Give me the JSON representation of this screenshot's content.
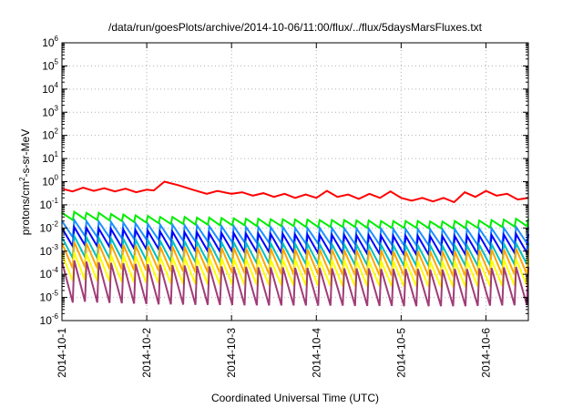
{
  "chart_data": {
    "type": "line",
    "title": "/data/run/goesPlots/archive/2014-10-06/11:00/flux/../flux/5daysMarsFluxes.txt",
    "xlabel": "Coordinated Universal Time (UTC)",
    "ylabel": {
      "base": "protons/cm",
      "sup": "2",
      "rest": "-s-sr-MeV"
    },
    "x_scale": "time",
    "y_scale": "log",
    "xlim": [
      "2014-10-01",
      "2014-10-06 12:00"
    ],
    "ylim": [
      1e-06,
      1000000.0
    ],
    "grid": true,
    "legend": "none",
    "x_ticks": [
      "2014-10-1",
      "2014-10-2",
      "2014-10-3",
      "2014-10-4",
      "2014-10-5",
      "2014-10-6"
    ],
    "y_ticks": [
      {
        "base": "10",
        "exp": "6"
      },
      {
        "base": "10",
        "exp": "5"
      },
      {
        "base": "10",
        "exp": "4"
      },
      {
        "base": "10",
        "exp": "3"
      },
      {
        "base": "10",
        "exp": "2"
      },
      {
        "base": "10",
        "exp": "1"
      },
      {
        "base": "10",
        "exp": "0"
      },
      {
        "base": "10",
        "exp": "-1"
      },
      {
        "base": "10",
        "exp": "-2"
      },
      {
        "base": "10",
        "exp": "-3"
      },
      {
        "base": "10",
        "exp": "-4"
      },
      {
        "base": "10",
        "exp": "-5"
      },
      {
        "base": "10",
        "exp": "-6"
      }
    ],
    "series": [
      {
        "color": "#ff0000",
        "width": 2,
        "points": [
          [
            "2014-10-01 00:00",
            0.5
          ],
          [
            "2014-10-01 03:00",
            0.38
          ],
          [
            "2014-10-01 06:00",
            0.55
          ],
          [
            "2014-10-01 09:00",
            0.4
          ],
          [
            "2014-10-01 12:00",
            0.52
          ],
          [
            "2014-10-01 15:00",
            0.38
          ],
          [
            "2014-10-01 18:00",
            0.5
          ],
          [
            "2014-10-01 21:00",
            0.35
          ],
          [
            "2014-10-02 00:00",
            0.45
          ],
          [
            "2014-10-02 02:00",
            0.42
          ],
          [
            "2014-10-02 05:00",
            1.0
          ],
          [
            "2014-10-02 09:00",
            0.7
          ],
          [
            "2014-10-02 13:00",
            0.45
          ],
          [
            "2014-10-02 17:00",
            0.3
          ],
          [
            "2014-10-02 20:00",
            0.4
          ],
          [
            "2014-10-03 00:00",
            0.3
          ],
          [
            "2014-10-03 03:00",
            0.35
          ],
          [
            "2014-10-03 06:00",
            0.25
          ],
          [
            "2014-10-03 09:00",
            0.32
          ],
          [
            "2014-10-03 12:00",
            0.22
          ],
          [
            "2014-10-03 15:00",
            0.3
          ],
          [
            "2014-10-03 18:00",
            0.2
          ],
          [
            "2014-10-03 21:00",
            0.28
          ],
          [
            "2014-10-04 00:00",
            0.2
          ],
          [
            "2014-10-04 03:00",
            0.4
          ],
          [
            "2014-10-04 06:00",
            0.22
          ],
          [
            "2014-10-04 09:00",
            0.28
          ],
          [
            "2014-10-04 12:00",
            0.18
          ],
          [
            "2014-10-04 15:00",
            0.3
          ],
          [
            "2014-10-04 18:00",
            0.2
          ],
          [
            "2014-10-04 21:00",
            0.38
          ],
          [
            "2014-10-05 00:00",
            0.2
          ],
          [
            "2014-10-05 03:00",
            0.15
          ],
          [
            "2014-10-05 06:00",
            0.2
          ],
          [
            "2014-10-05 09:00",
            0.14
          ],
          [
            "2014-10-05 12:00",
            0.2
          ],
          [
            "2014-10-05 15:00",
            0.13
          ],
          [
            "2014-10-05 18:00",
            0.35
          ],
          [
            "2014-10-05 21:00",
            0.22
          ],
          [
            "2014-10-06 00:00",
            0.4
          ],
          [
            "2014-10-06 03:00",
            0.25
          ],
          [
            "2014-10-06 06:00",
            0.3
          ],
          [
            "2014-10-06 09:00",
            0.17
          ],
          [
            "2014-10-06 12:00",
            0.2
          ]
        ]
      },
      {
        "color": "#00ee00",
        "width": 2,
        "sawtooth": true,
        "peaks": [
          0.045,
          0.05,
          0.045,
          0.045,
          0.04,
          0.038,
          0.035,
          0.033,
          0.03,
          0.03,
          0.03,
          0.028,
          0.028,
          0.027,
          0.026,
          0.025,
          0.025,
          0.024,
          0.024,
          0.023,
          0.023,
          0.022,
          0.022,
          0.022,
          0.021,
          0.021,
          0.02,
          0.02,
          0.02,
          0.02,
          0.019,
          0.019,
          0.02,
          0.02,
          0.021,
          0.022,
          0.023,
          0.025
        ],
        "troughs": [
          0.022,
          0.024,
          0.022,
          0.021,
          0.02,
          0.018,
          0.017,
          0.016,
          0.015,
          0.015,
          0.014,
          0.014,
          0.013,
          0.013,
          0.013,
          0.012,
          0.012,
          0.012,
          0.012,
          0.011,
          0.011,
          0.011,
          0.011,
          0.011,
          0.01,
          0.01,
          0.01,
          0.01,
          0.01,
          0.0098,
          0.0098,
          0.0095,
          0.0098,
          0.01,
          0.0105,
          0.011,
          0.0115,
          0.012
        ]
      },
      {
        "color": "#1e90ff",
        "width": 2,
        "sawtooth": true,
        "peaks": [
          0.02,
          0.022,
          0.02,
          0.019,
          0.018,
          0.017,
          0.016,
          0.015,
          0.014,
          0.014,
          0.013,
          0.013,
          0.012,
          0.012,
          0.012,
          0.011,
          0.011,
          0.011,
          0.011,
          0.01,
          0.01,
          0.01,
          0.01,
          0.0098,
          0.0095,
          0.0095,
          0.0093,
          0.009,
          0.009,
          0.009,
          0.0088,
          0.0088,
          0.009,
          0.0092,
          0.0095,
          0.0098,
          0.01,
          0.011
        ],
        "troughs": [
          0.004,
          0.0045,
          0.004,
          0.0038,
          0.0036,
          0.0034,
          0.0032,
          0.003,
          0.0028,
          0.0028,
          0.0026,
          0.0026,
          0.0025,
          0.0024,
          0.0024,
          0.0023,
          0.0023,
          0.0022,
          0.0022,
          0.0021,
          0.0021,
          0.002,
          0.002,
          0.002,
          0.0019,
          0.0019,
          0.0019,
          0.0018,
          0.0018,
          0.0018,
          0.0018,
          0.0017,
          0.0018,
          0.0018,
          0.0019,
          0.002,
          0.0021,
          0.0022
        ]
      },
      {
        "color": "#0000ff",
        "width": 2,
        "sawtooth": true,
        "peaks": [
          0.01,
          0.011,
          0.01,
          0.0095,
          0.009,
          0.0085,
          0.008,
          0.0075,
          0.007,
          0.007,
          0.0065,
          0.0065,
          0.006,
          0.006,
          0.006,
          0.0056,
          0.0056,
          0.0055,
          0.0055,
          0.0052,
          0.0052,
          0.005,
          0.005,
          0.005,
          0.0048,
          0.0048,
          0.0046,
          0.0045,
          0.0045,
          0.0045,
          0.0044,
          0.0044,
          0.0045,
          0.0046,
          0.0048,
          0.005,
          0.0052,
          0.0055
        ],
        "troughs": [
          0.0016,
          0.0018,
          0.0016,
          0.0015,
          0.0014,
          0.0013,
          0.0012,
          0.0012,
          0.0011,
          0.0011,
          0.001,
          0.001,
          0.00095,
          0.00095,
          0.0009,
          0.0009,
          0.0009,
          0.00085,
          0.00085,
          0.0008,
          0.0008,
          0.0008,
          0.0008,
          0.00078,
          0.00075,
          0.00075,
          0.00072,
          0.0007,
          0.0007,
          0.0007,
          0.00068,
          0.00068,
          0.0007,
          0.00072,
          0.00075,
          0.0008,
          0.00082,
          0.00085
        ]
      },
      {
        "color": "#00c0c0",
        "width": 2,
        "sawtooth": true,
        "peaks": [
          0.004,
          0.0045,
          0.004,
          0.0038,
          0.0036,
          0.0034,
          0.0032,
          0.003,
          0.0028,
          0.0028,
          0.0026,
          0.0026,
          0.0025,
          0.0024,
          0.0024,
          0.0023,
          0.0023,
          0.0022,
          0.0022,
          0.0021,
          0.0021,
          0.002,
          0.002,
          0.002,
          0.0019,
          0.0019,
          0.0019,
          0.0018,
          0.0018,
          0.0018,
          0.0018,
          0.0017,
          0.0018,
          0.0018,
          0.0019,
          0.002,
          0.0021,
          0.0022
        ],
        "troughs": [
          0.0005,
          0.00055,
          0.0005,
          0.00048,
          0.00045,
          0.00042,
          0.0004,
          0.00038,
          0.00036,
          0.00035,
          0.00033,
          0.00033,
          0.00032,
          0.0003,
          0.0003,
          0.00029,
          0.00029,
          0.00028,
          0.00028,
          0.00027,
          0.00027,
          0.00026,
          0.00026,
          0.00025,
          0.00024,
          0.00024,
          0.00024,
          0.00023,
          0.00023,
          0.00023,
          0.00022,
          0.00022,
          0.00023,
          0.00023,
          0.00024,
          0.00025,
          0.00026,
          0.00027
        ]
      },
      {
        "color": "#ffa500",
        "width": 2,
        "sawtooth": true,
        "peaks": [
          0.0022,
          0.0025,
          0.0022,
          0.0021,
          0.002,
          0.0019,
          0.0018,
          0.0017,
          0.0016,
          0.0016,
          0.0015,
          0.0015,
          0.0014,
          0.0014,
          0.0014,
          0.0013,
          0.0013,
          0.0013,
          0.0013,
          0.0012,
          0.0012,
          0.0012,
          0.0012,
          0.0011,
          0.0011,
          0.0011,
          0.0011,
          0.001,
          0.001,
          0.001,
          0.001,
          0.001,
          0.001,
          0.0011,
          0.0011,
          0.0012,
          0.0012,
          0.0013
        ],
        "troughs": [
          0.00018,
          0.0002,
          0.00018,
          0.00017,
          0.00016,
          0.00015,
          0.00014,
          0.00014,
          0.00013,
          0.00013,
          0.00012,
          0.00012,
          0.00011,
          0.00011,
          0.00011,
          0.0001,
          0.0001,
          0.0001,
          0.0001,
          9.5e-05,
          9.5e-05,
          9e-05,
          9e-05,
          9e-05,
          8.8e-05,
          8.8e-05,
          8.5e-05,
          8.5e-05,
          8.5e-05,
          8.2e-05,
          8.2e-05,
          8e-05,
          8.2e-05,
          8.5e-05,
          8.8e-05,
          9e-05,
          9.5e-05,
          0.0001
        ]
      },
      {
        "color": "#ffff00",
        "width": 2,
        "sawtooth": true,
        "peaks": [
          0.0008,
          0.0009,
          0.0008,
          0.00075,
          0.0007,
          0.00068,
          0.00065,
          0.0006,
          0.00058,
          0.00056,
          0.00054,
          0.00052,
          0.0005,
          0.0005,
          0.00048,
          0.00047,
          0.00046,
          0.00045,
          0.00045,
          0.00044,
          0.00043,
          0.00042,
          0.00042,
          0.00041,
          0.0004,
          0.0004,
          0.00039,
          0.00038,
          0.00038,
          0.00038,
          0.00037,
          0.00037,
          0.00038,
          0.00039,
          0.0004,
          0.00042,
          0.00044,
          0.00046
        ],
        "troughs": [
          5e-05,
          5.5e-05,
          5e-05,
          4.8e-05,
          4.6e-05,
          4.4e-05,
          4.2e-05,
          4e-05,
          3.9e-05,
          3.8e-05,
          3.7e-05,
          3.6e-05,
          3.5e-05,
          3.5e-05,
          3.4e-05,
          3.4e-05,
          3.3e-05,
          3.3e-05,
          3.2e-05,
          3.2e-05,
          3.1e-05,
          3.1e-05,
          3e-05,
          3e-05,
          3e-05,
          3e-05,
          2.9e-05,
          2.9e-05,
          2.9e-05,
          2.8e-05,
          2.8e-05,
          2.8e-05,
          2.8e-05,
          2.9e-05,
          3e-05,
          3.1e-05,
          3.2e-05,
          3.3e-05
        ]
      },
      {
        "color": "#a03c78",
        "width": 2,
        "sawtooth": true,
        "peaks": [
          0.00035,
          0.0004,
          0.00035,
          0.00033,
          0.00031,
          0.0003,
          0.00028,
          0.00027,
          0.00026,
          0.00025,
          0.00024,
          0.00023,
          0.00022,
          0.00022,
          0.00021,
          0.00021,
          0.0002,
          0.0002,
          0.0002,
          0.00019,
          0.00019,
          0.00019,
          0.00018,
          0.00018,
          0.00018,
          0.00018,
          0.00017,
          0.00017,
          0.00017,
          0.00017,
          0.00016,
          0.00016,
          0.00017,
          0.00017,
          0.00018,
          0.00019,
          0.0002,
          0.00021
        ],
        "troughs": [
          6e-06,
          6.5e-06,
          6e-06,
          5.8e-06,
          5.6e-06,
          5.4e-06,
          5.2e-06,
          5e-06,
          5e-06,
          4.9e-06,
          4.8e-06,
          4.8e-06,
          4.7e-06,
          4.7e-06,
          4.6e-06,
          4.6e-06,
          4.5e-06,
          4.5e-06,
          4.5e-06,
          4.5e-06,
          4.4e-06,
          4.4e-06,
          4.4e-06,
          4.3e-06,
          4.3e-06,
          4.3e-06,
          4.3e-06,
          4.2e-06,
          4.2e-06,
          4.2e-06,
          4.2e-06,
          4.2e-06,
          4.2e-06,
          4.3e-06,
          4.4e-06,
          4.5e-06,
          4.6e-06,
          4.7e-06
        ]
      }
    ]
  }
}
